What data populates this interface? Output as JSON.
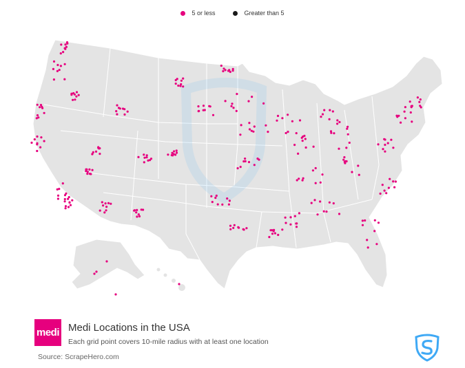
{
  "legend": {
    "items": [
      {
        "label": "5 or less",
        "color": "#e6007e"
      },
      {
        "label": "Greater than 5",
        "color": "#1a1a1a"
      }
    ]
  },
  "title": "Medi Locations in the USA",
  "subtitle": "Each grid point covers 10-mile radius with at least one location",
  "source": "Source: ScrapeHero.com",
  "brand": {
    "logo_text": "medi",
    "color": "#e6007e"
  },
  "watermark_icon": "scrapehero-shield-icon",
  "colors": {
    "land": "#e4e4e4",
    "borders": "#ffffff",
    "dot_small": "#e6007e",
    "dot_large": "#1a1a1a",
    "scrapehero_blue": "#3fa9f5"
  }
}
